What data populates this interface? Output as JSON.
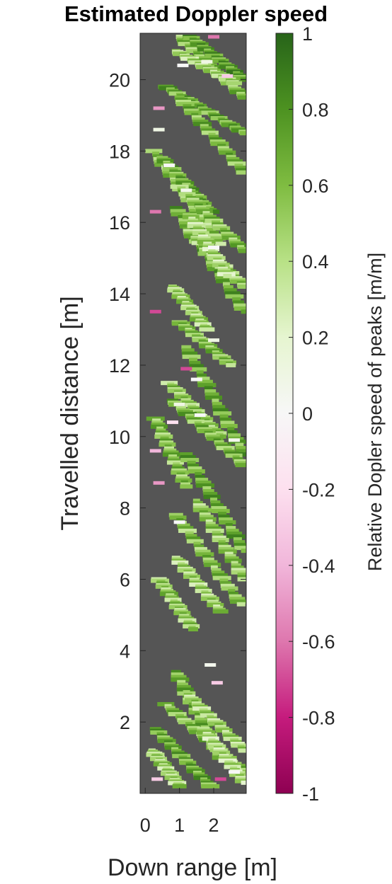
{
  "chart_data": {
    "type": "heatmap",
    "title": "Estimated Doppler speed",
    "xlabel": "Down range [m]",
    "ylabel": "Travelled distance [m]",
    "xlim": [
      -0.15,
      2.95
    ],
    "ylim": [
      0,
      21.3
    ],
    "x_ticks": [
      0,
      1,
      2
    ],
    "y_ticks": [
      2,
      4,
      6,
      8,
      10,
      12,
      14,
      16,
      18,
      20
    ],
    "background_color": "#555555",
    "grid": false,
    "colorbar": {
      "label": "Relative Dopler speed of peaks [m/m]",
      "range": [
        -1,
        1
      ],
      "ticks": [
        1,
        0.8,
        0.6,
        0.4,
        0.2,
        0,
        -0.2,
        -0.4,
        -0.6,
        -0.8,
        -1
      ],
      "tick_labels": [
        "1",
        "0.8",
        "0.6",
        "0.4",
        "0.2",
        "0",
        "-0.2",
        "-0.4",
        "-0.6",
        "-0.8",
        "-1"
      ],
      "colormap": [
        "#8e0152",
        "#c51b7d",
        "#de77ae",
        "#f1b6da",
        "#fde0ef",
        "#f7f7f7",
        "#e6f5d0",
        "#b8e186",
        "#7fbc41",
        "#4d9221",
        "#276419"
      ],
      "location": "right"
    },
    "streaks": [
      {
        "x0": 1.0,
        "y0": 21.2,
        "x1": 2.9,
        "y1": 19.5,
        "value": 0.6
      },
      {
        "x0": 1.3,
        "y0": 21.2,
        "x1": 2.9,
        "y1": 20.0,
        "value": 0.75
      },
      {
        "x0": 0.9,
        "y0": 20.8,
        "x1": 2.6,
        "y1": 19.9,
        "value": 0.5
      },
      {
        "x0": 0.6,
        "y0": 19.8,
        "x1": 2.9,
        "y1": 18.5,
        "value": 0.7
      },
      {
        "x0": 1.0,
        "y0": 19.5,
        "x1": 2.9,
        "y1": 17.4,
        "value": 0.65
      },
      {
        "x0": 0.25,
        "y0": 18.0,
        "x1": 2.2,
        "y1": 15.4,
        "value": 0.55
      },
      {
        "x0": 0.5,
        "y0": 17.8,
        "x1": 1.9,
        "y1": 16.3,
        "value": 0.7
      },
      {
        "x0": 1.0,
        "y0": 17.0,
        "x1": 2.9,
        "y1": 15.2,
        "value": 0.6
      },
      {
        "x0": 0.9,
        "y0": 16.4,
        "x1": 2.9,
        "y1": 13.5,
        "value": 0.7
      },
      {
        "x0": 1.2,
        "y0": 15.8,
        "x1": 2.9,
        "y1": 14.2,
        "value": 0.55
      },
      {
        "x0": 1.3,
        "y0": 16.2,
        "x1": 2.4,
        "y1": 14.5,
        "value": 0.45
      },
      {
        "x0": 0.8,
        "y0": 14.2,
        "x1": 1.8,
        "y1": 13.0,
        "value": 0.5
      },
      {
        "x0": 1.0,
        "y0": 13.2,
        "x1": 2.5,
        "y1": 12.0,
        "value": 0.6
      },
      {
        "x0": 1.2,
        "y0": 12.5,
        "x1": 2.9,
        "y1": 9.5,
        "value": 0.7
      },
      {
        "x0": 0.7,
        "y0": 11.5,
        "x1": 2.2,
        "y1": 10.0,
        "value": 0.55
      },
      {
        "x0": 0.8,
        "y0": 11.0,
        "x1": 2.9,
        "y1": 9.2,
        "value": 0.65
      },
      {
        "x0": 0.3,
        "y0": 10.5,
        "x1": 1.2,
        "y1": 8.6,
        "value": 0.6
      },
      {
        "x0": 1.2,
        "y0": 9.5,
        "x1": 2.9,
        "y1": 6.8,
        "value": 0.7
      },
      {
        "x0": 1.5,
        "y0": 8.2,
        "x1": 2.9,
        "y1": 6.0,
        "value": 0.55
      },
      {
        "x0": 0.9,
        "y0": 7.8,
        "x1": 2.8,
        "y1": 5.3,
        "value": 0.6
      },
      {
        "x0": 0.9,
        "y0": 6.6,
        "x1": 2.2,
        "y1": 5.1,
        "value": 0.5
      },
      {
        "x0": 0.4,
        "y0": 6.0,
        "x1": 1.4,
        "y1": 4.6,
        "value": 0.55
      },
      {
        "x0": 0.9,
        "y0": 3.4,
        "x1": 2.2,
        "y1": 1.0,
        "value": 0.65
      },
      {
        "x0": 0.6,
        "y0": 2.5,
        "x1": 2.9,
        "y1": 0.6,
        "value": 0.6
      },
      {
        "x0": 0.3,
        "y0": 1.8,
        "x1": 1.9,
        "y1": 0.2,
        "value": 0.7
      },
      {
        "x0": 1.2,
        "y0": 2.8,
        "x1": 2.9,
        "y1": 1.2,
        "value": 0.5
      },
      {
        "x0": 1.7,
        "y0": 1.8,
        "x1": 2.9,
        "y1": 0.3,
        "value": 0.45
      },
      {
        "x0": 0.2,
        "y0": 1.2,
        "x1": 1.0,
        "y1": 0.2,
        "value": 0.5
      }
    ],
    "spots": [
      {
        "x": 1.8,
        "y": 20.5,
        "value": 0.1
      },
      {
        "x": 2.4,
        "y": 20.1,
        "value": -0.3
      },
      {
        "x": 2.0,
        "y": 21.2,
        "value": -0.6
      },
      {
        "x": 1.1,
        "y": 20.4,
        "value": 0.0
      },
      {
        "x": 0.4,
        "y": 18.6,
        "value": 0.1
      },
      {
        "x": 0.7,
        "y": 17.6,
        "value": 0.0
      },
      {
        "x": 1.2,
        "y": 16.9,
        "value": 0.05
      },
      {
        "x": 2.0,
        "y": 15.3,
        "value": 0.0
      },
      {
        "x": 2.0,
        "y": 12.7,
        "value": 0.1
      },
      {
        "x": 1.2,
        "y": 11.9,
        "value": -0.7
      },
      {
        "x": 1.5,
        "y": 11.6,
        "value": 0.0
      },
      {
        "x": 1.0,
        "y": 10.9,
        "value": 0.1
      },
      {
        "x": 0.8,
        "y": 10.4,
        "value": -0.2
      },
      {
        "x": 1.6,
        "y": 10.6,
        "value": 0.0
      },
      {
        "x": 2.6,
        "y": 9.9,
        "value": 0.05
      },
      {
        "x": 1.0,
        "y": 7.6,
        "value": 0.0
      },
      {
        "x": 1.9,
        "y": 3.6,
        "value": 0.05
      },
      {
        "x": 2.1,
        "y": 3.1,
        "value": -0.3
      },
      {
        "x": 2.6,
        "y": 0.6,
        "value": 0.0
      },
      {
        "x": 2.2,
        "y": 0.4,
        "value": -0.7
      },
      {
        "x": 0.4,
        "y": 19.2,
        "value": -0.5
      },
      {
        "x": 0.3,
        "y": 16.3,
        "value": -0.6
      },
      {
        "x": 0.3,
        "y": 13.5,
        "value": -0.7
      },
      {
        "x": 0.3,
        "y": 9.6,
        "value": -0.4
      },
      {
        "x": 0.4,
        "y": 8.7,
        "value": -0.5
      },
      {
        "x": 0.35,
        "y": 0.4,
        "value": -0.3
      }
    ]
  }
}
